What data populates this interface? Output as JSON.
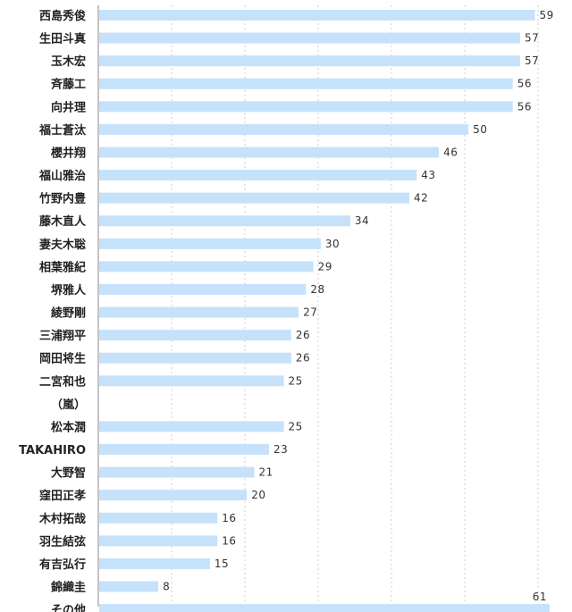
{
  "chart_data": {
    "type": "bar",
    "orientation": "horizontal",
    "categories": [
      "西島秀俊",
      "生田斗真",
      "玉木宏",
      "斉藤工",
      "向井理",
      "福士蒼汰",
      "櫻井翔",
      "福山雅治",
      "竹野内豊",
      "藤木直人",
      "妻夫木聡",
      "相葉雅紀",
      "堺雅人",
      "綾野剛",
      "三浦翔平",
      "岡田将生",
      "二宮和也",
      "（嵐）",
      "松本潤",
      "TAKAHIRO",
      "大野智",
      "窪田正孝",
      "木村拓哉",
      "羽生結弦",
      "有吉弘行",
      "錦織圭",
      "その他"
    ],
    "bars": [
      {
        "category_index": 0,
        "value": 59
      },
      {
        "category_index": 1,
        "value": 57
      },
      {
        "category_index": 2,
        "value": 57
      },
      {
        "category_index": 3,
        "value": 56
      },
      {
        "category_index": 4,
        "value": 56
      },
      {
        "category_index": 5,
        "value": 50
      },
      {
        "category_index": 6,
        "value": 46
      },
      {
        "category_index": 7,
        "value": 43
      },
      {
        "category_index": 8,
        "value": 42
      },
      {
        "category_index": 9,
        "value": 34
      },
      {
        "category_index": 10,
        "value": 30
      },
      {
        "category_index": 11,
        "value": 29
      },
      {
        "category_index": 12,
        "value": 28
      },
      {
        "category_index": 13,
        "value": 27
      },
      {
        "category_index": 14,
        "value": 26
      },
      {
        "category_index": 15,
        "value": 26
      },
      {
        "category_index": 16,
        "value": 25
      },
      {
        "category_index": 18,
        "value": 25
      },
      {
        "category_index": 19,
        "value": 23
      },
      {
        "category_index": 20,
        "value": 21
      },
      {
        "category_index": 21,
        "value": 20
      },
      {
        "category_index": 22,
        "value": 16
      },
      {
        "category_index": 23,
        "value": 16
      },
      {
        "category_index": 24,
        "value": 15
      },
      {
        "category_index": 25,
        "value": 8
      },
      {
        "category_index": 26,
        "value": 61
      }
    ],
    "xlim": [
      0,
      61
    ],
    "grid": true,
    "legend": "none",
    "title": "",
    "xlabel": "",
    "ylabel": "",
    "colors": {
      "bar": "#c6e2fa",
      "grid": "#cccccc",
      "axis": "#888888"
    }
  }
}
